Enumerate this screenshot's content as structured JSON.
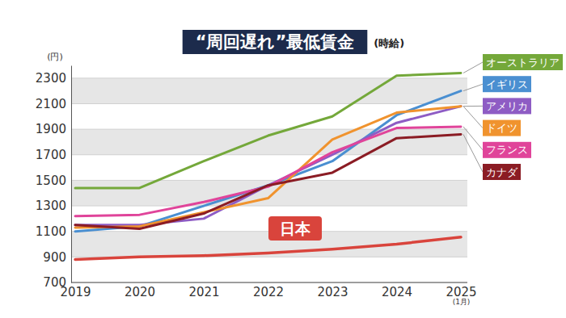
{
  "chart_data": {
    "type": "line",
    "title": "“周回遅れ”最低賃金",
    "subtitle": "(時給)",
    "y_label": "(円)",
    "categories": [
      "2019",
      "2020",
      "2021",
      "2022",
      "2023",
      "2024",
      "2025(1月)"
    ],
    "series": [
      {
        "name": "オーストラリア",
        "color": "#74a83a",
        "values": [
          1440,
          1440,
          1650,
          1850,
          2000,
          2320,
          2340
        ]
      },
      {
        "name": "イギリス",
        "color": "#4a8fd1",
        "values": [
          1100,
          1140,
          1300,
          1460,
          1650,
          2010,
          2200
        ]
      },
      {
        "name": "アメリカ",
        "color": "#8e5cc4",
        "values": [
          1150,
          1150,
          1200,
          1460,
          1700,
          1950,
          2080
        ]
      },
      {
        "name": "ドイツ",
        "color": "#f0932e",
        "values": [
          1130,
          1140,
          1250,
          1360,
          1820,
          2030,
          2080
        ]
      },
      {
        "name": "フランス",
        "color": "#e0449a",
        "values": [
          1220,
          1230,
          1330,
          1450,
          1720,
          1910,
          1920
        ]
      },
      {
        "name": "カナダ",
        "color": "#8b1c24",
        "values": [
          1150,
          1120,
          1240,
          1460,
          1560,
          1830,
          1860
        ]
      },
      {
        "name": "日本",
        "color": "#d9443c",
        "values": [
          880,
          900,
          910,
          930,
          960,
          1000,
          1055
        ]
      }
    ],
    "ylim": [
      700,
      2400
    ],
    "yticks": [
      700,
      900,
      1100,
      1300,
      1500,
      1700,
      1900,
      2100,
      2300
    ],
    "grid": true,
    "legend": "right"
  }
}
